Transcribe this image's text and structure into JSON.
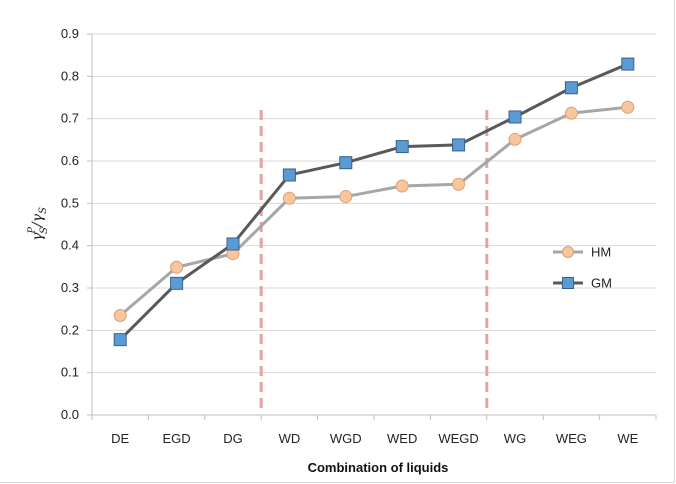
{
  "chart_data": {
    "type": "line",
    "title": "",
    "xlabel": "Combination of liquids",
    "ylabel": "γSP/γS",
    "ylabel_parts": {
      "base": "γ",
      "sub": "S",
      "sup": "P",
      "slash": "/γ",
      "sub2": "S"
    },
    "categories": [
      "DE",
      "EGD",
      "DG",
      "WD",
      "WGD",
      "WED",
      "WEGD",
      "WG",
      "WEG",
      "WE"
    ],
    "yticks": [
      "0.0",
      "0.1",
      "0.2",
      "0.3",
      "0.4",
      "0.5",
      "0.6",
      "0.7",
      "0.8",
      "0.9"
    ],
    "ylim": [
      0,
      0.9
    ],
    "grid": "horizontal",
    "legend_position": "right",
    "series": [
      {
        "name": "HM",
        "marker": "circle",
        "line_color": "#a6a6a6",
        "marker_fill": "#f9c59b",
        "marker_stroke": "#d8a07c",
        "values": [
          0.235,
          0.349,
          0.381,
          0.512,
          0.516,
          0.541,
          0.545,
          0.651,
          0.713,
          0.727
        ]
      },
      {
        "name": "GM",
        "marker": "square",
        "line_color": "#595959",
        "marker_fill": "#5b9bd5",
        "marker_stroke": "#3a5f8a",
        "values": [
          0.178,
          0.311,
          0.404,
          0.567,
          0.596,
          0.634,
          0.638,
          0.704,
          0.773,
          0.829
        ]
      }
    ],
    "separators_after_category": [
      2,
      6
    ],
    "separator_color": "#e8a0a0"
  }
}
